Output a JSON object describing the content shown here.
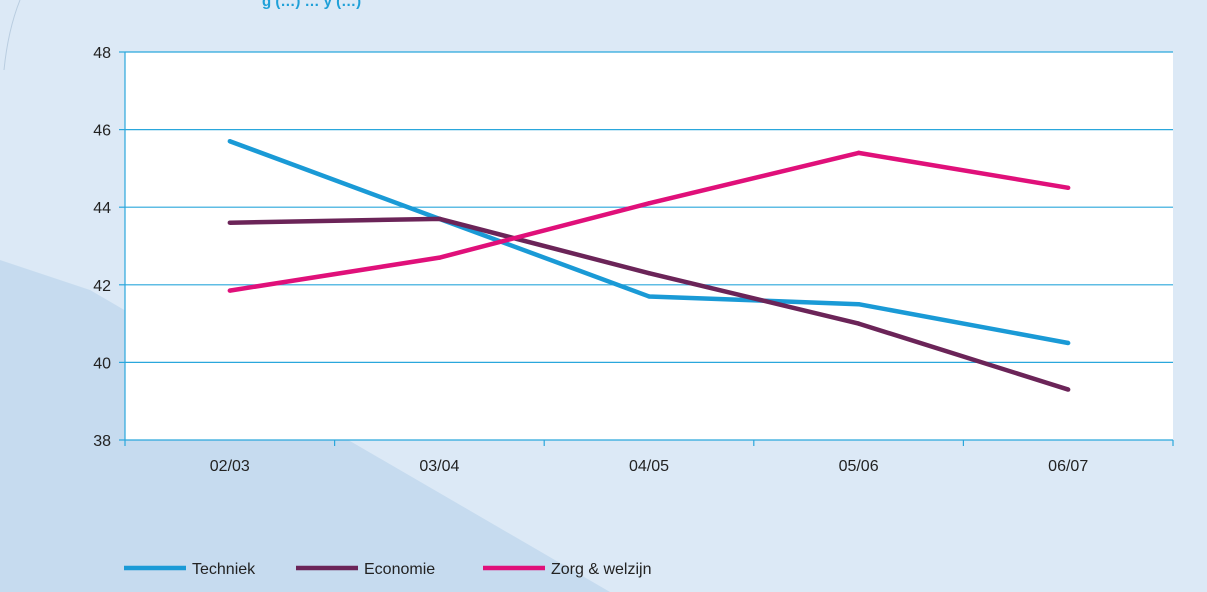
{
  "page": {
    "caption_fragment": "g (…) … y (…)"
  },
  "colors": {
    "panel_background": "#dce9f6",
    "panel_shade": "#c6dbef",
    "plot_background": "#ffffff",
    "gridline": "#2aa7dc",
    "axis": "#2aa7dc"
  },
  "chart_data": {
    "type": "line",
    "title": "",
    "xlabel": "",
    "ylabel": "",
    "categories": [
      "02/03",
      "03/04",
      "04/05",
      "05/06",
      "06/07"
    ],
    "ylim": [
      38,
      48
    ],
    "yticks": [
      38,
      40,
      42,
      44,
      46,
      48
    ],
    "grid": true,
    "legend_position": "bottom-left",
    "series": [
      {
        "name": "Techniek",
        "color": "#1a9ad6",
        "values": [
          45.7,
          43.7,
          41.7,
          41.5,
          40.5
        ]
      },
      {
        "name": "Economie",
        "color": "#6b2458",
        "values": [
          43.6,
          43.7,
          42.3,
          41.0,
          39.3
        ]
      },
      {
        "name": "Zorg & welzijn",
        "color": "#e0107a",
        "values": [
          41.85,
          42.7,
          44.1,
          45.4,
          44.5
        ]
      }
    ]
  }
}
